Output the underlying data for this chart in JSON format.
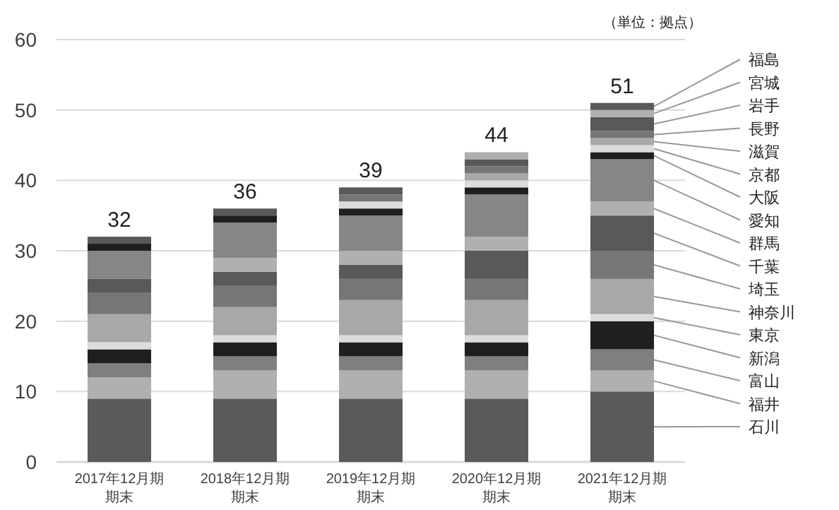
{
  "chart_data": {
    "type": "bar",
    "stacked": true,
    "categories": [
      "2017年12月期期末",
      "2018年12月期期末",
      "2019年12月期期末",
      "2020年12月期期末",
      "2021年12月期期末"
    ],
    "series": [
      {
        "name": "石川",
        "color": "#5a5a5a",
        "values": [
          9,
          9,
          9,
          9,
          10
        ]
      },
      {
        "name": "福井",
        "color": "#b0b0b0",
        "values": [
          3,
          4,
          4,
          4,
          3
        ]
      },
      {
        "name": "富山",
        "color": "#7f7f7f",
        "values": [
          2,
          2,
          2,
          2,
          3
        ]
      },
      {
        "name": "新潟",
        "color": "#1f1f1f",
        "values": [
          2,
          2,
          2,
          2,
          4
        ]
      },
      {
        "name": "東京",
        "color": "#dcdcdc",
        "values": [
          1,
          1,
          1,
          1,
          1
        ]
      },
      {
        "name": "神奈川",
        "color": "#a8a8a8",
        "values": [
          4,
          4,
          5,
          5,
          5
        ]
      },
      {
        "name": "埼玉",
        "color": "#767676",
        "values": [
          3,
          3,
          3,
          3,
          4
        ]
      },
      {
        "name": "千葉",
        "color": "#595959",
        "values": [
          2,
          2,
          2,
          4,
          5
        ]
      },
      {
        "name": "群馬",
        "color": "#b0b0b0",
        "values": [
          0,
          2,
          2,
          2,
          2
        ]
      },
      {
        "name": "愛知",
        "color": "#868686",
        "values": [
          4,
          5,
          5,
          6,
          6
        ]
      },
      {
        "name": "大阪",
        "color": "#1f1f1f",
        "values": [
          1,
          1,
          1,
          1,
          1
        ]
      },
      {
        "name": "京都",
        "color": "#dcdcdc",
        "values": [
          0,
          0,
          1,
          1,
          1
        ]
      },
      {
        "name": "滋賀",
        "color": "#a8a8a8",
        "values": [
          0,
          0,
          0,
          1,
          1
        ]
      },
      {
        "name": "長野",
        "color": "#767676",
        "values": [
          0,
          0,
          1,
          1,
          1
        ]
      },
      {
        "name": "岩手",
        "color": "#595959",
        "values": [
          1,
          1,
          1,
          1,
          2
        ]
      },
      {
        "name": "宮城",
        "color": "#b0b0b0",
        "values": [
          0,
          0,
          0,
          1,
          1
        ]
      },
      {
        "name": "福島",
        "color": "#5a5a5a",
        "values": [
          0,
          0,
          0,
          0,
          1
        ]
      }
    ],
    "ylim": [
      0,
      60
    ],
    "yticks": [
      0,
      10,
      20,
      30,
      40,
      50,
      60
    ],
    "grid": "y",
    "legend": "right",
    "totals": [
      "32",
      "36",
      "39",
      "44",
      "51"
    ],
    "annotations": [
      "（単位：拠点）"
    ]
  }
}
